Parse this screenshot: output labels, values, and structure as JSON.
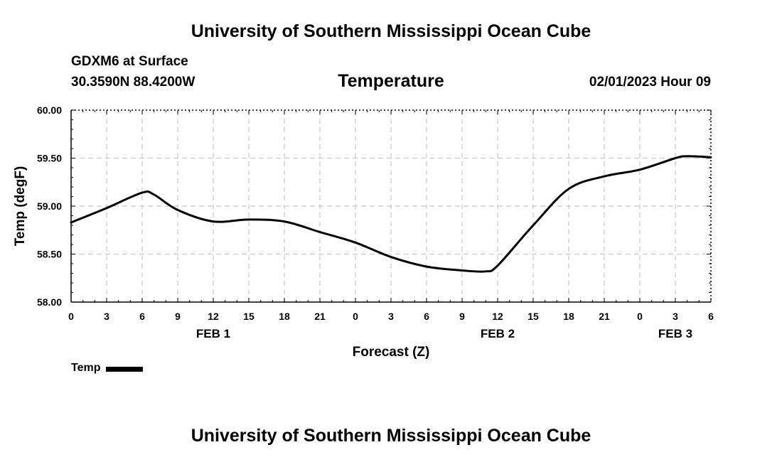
{
  "header": {
    "title": "University of Southern Mississippi Ocean Cube",
    "station": "GDXM6 at Surface",
    "coords": "30.3590N  88.4200W",
    "variable_title": "Temperature",
    "datetime": "02/01/2023 Hour 09"
  },
  "footer": {
    "title": "University of Southern Mississippi Ocean Cube"
  },
  "chart_data": {
    "type": "line",
    "ylabel": "Temp (degF)",
    "xlabel": "Forecast (Z)",
    "ylim": [
      58.0,
      60.0
    ],
    "yticks": [
      "60.00",
      "59.50",
      "59.00",
      "58.50",
      "58.00"
    ],
    "ytick_values": [
      60.0,
      59.5,
      59.0,
      58.5,
      58.0
    ],
    "xlim": [
      0,
      54
    ],
    "xtick_labels": [
      "0",
      "3",
      "6",
      "9",
      "12",
      "15",
      "18",
      "21",
      "0",
      "3",
      "6",
      "9",
      "12",
      "15",
      "18",
      "21",
      "0",
      "3",
      "6"
    ],
    "date_labels": [
      {
        "label": "FEB 1",
        "hour": 12
      },
      {
        "label": "FEB 2",
        "hour": 36
      },
      {
        "label": "FEB 3",
        "hour": 51
      }
    ],
    "grid": true,
    "series": [
      {
        "name": "Temp",
        "color": "#000000",
        "x": [
          0,
          3,
          6,
          7,
          9,
          12,
          15,
          18,
          21,
          24,
          27,
          30,
          33,
          35,
          36,
          39,
          42,
          45,
          48,
          51,
          52,
          54
        ],
        "values": [
          58.83,
          58.98,
          59.14,
          59.12,
          58.96,
          58.84,
          58.86,
          58.84,
          58.73,
          58.62,
          58.47,
          58.37,
          58.33,
          58.32,
          58.38,
          58.8,
          59.18,
          59.31,
          59.38,
          59.5,
          59.52,
          59.51
        ]
      }
    ]
  },
  "legend": {
    "label": "Temp"
  }
}
